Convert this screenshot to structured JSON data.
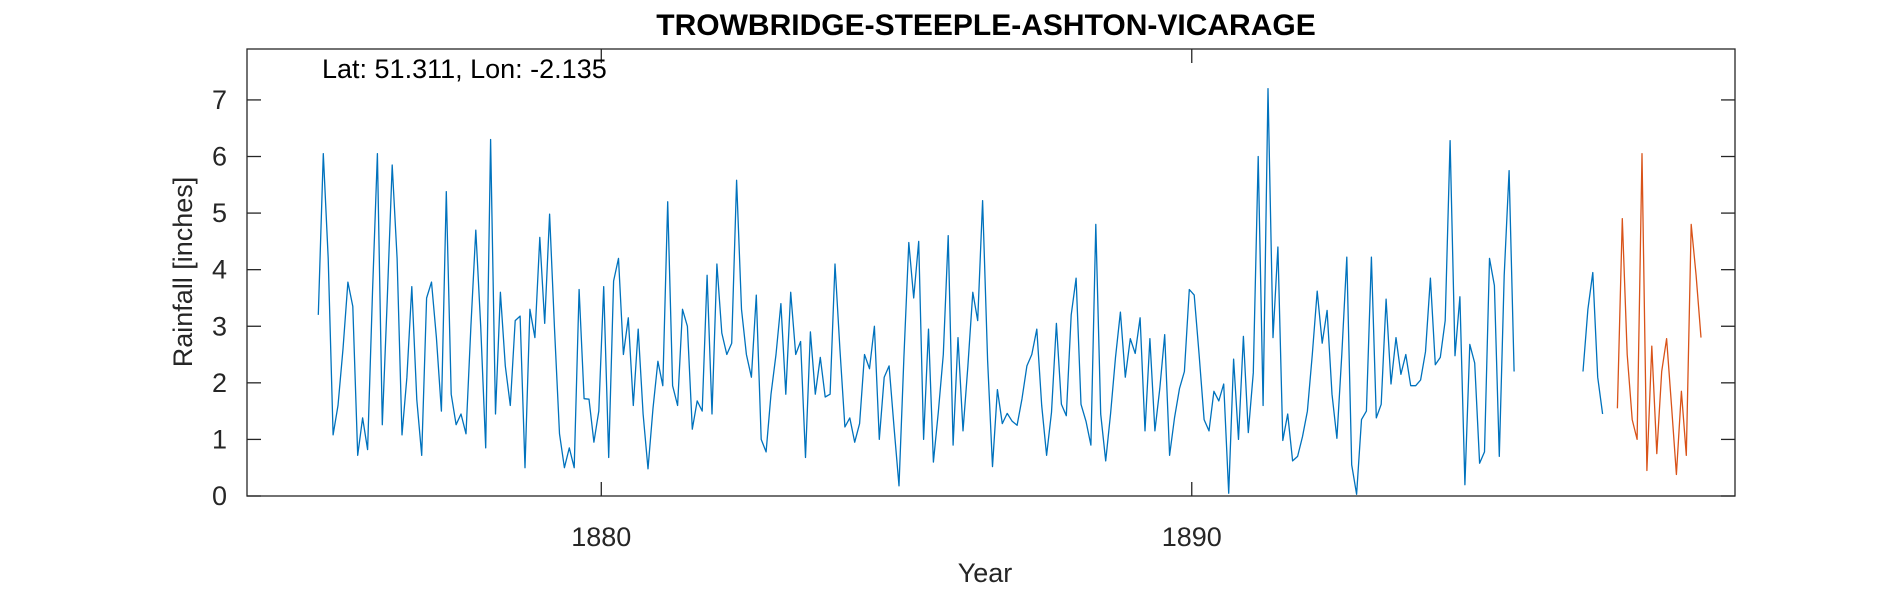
{
  "chart_data": {
    "type": "line",
    "title": "TROWBRIDGE-STEEPLE-ASHTON-VICARAGE",
    "annotation": "Lat: 51.311, Lon: -2.135",
    "xlabel": "Year",
    "ylabel": "Rainfall [inches]",
    "xlim": [
      1874,
      1899.2
    ],
    "ylim": [
      0,
      7.9
    ],
    "x_ticks": [
      1880,
      1890
    ],
    "x_tick_labels": [
      "1880",
      "1890"
    ],
    "y_ticks": [
      0,
      1,
      2,
      3,
      4,
      5,
      6,
      7
    ],
    "y_tick_labels": [
      "0",
      "1",
      "2",
      "3",
      "4",
      "5",
      "6",
      "7"
    ],
    "grid": false,
    "box": true,
    "colors": {
      "series_1": "#0072BD",
      "series_2": "#D95319",
      "axes": "#262626"
    },
    "series": [
      {
        "color": "#0072BD",
        "x_start": 1875.208333,
        "x_step": 0.0833333,
        "values": [
          3.2,
          6.05,
          4.2,
          1.08,
          1.6,
          2.6,
          3.78,
          3.35,
          0.72,
          1.38,
          0.82,
          3.6,
          6.05,
          1.26,
          3.45,
          5.85,
          4.2,
          1.08,
          2.1,
          3.7,
          1.7,
          0.72,
          3.5,
          3.78,
          2.8,
          1.5,
          5.38,
          1.8,
          1.26,
          1.45,
          1.1,
          3.0,
          4.7,
          3.0,
          0.85,
          6.3,
          1.45,
          3.6,
          2.3,
          1.6,
          3.1,
          3.18,
          0.5,
          3.3,
          2.8,
          4.57,
          3.05,
          4.98,
          2.96,
          1.1,
          0.5,
          0.85,
          0.5,
          3.65,
          1.72,
          1.71,
          0.95,
          1.5,
          3.7,
          0.68,
          3.8,
          4.2,
          2.5,
          3.15,
          1.6,
          2.95,
          1.45,
          0.48,
          1.55,
          2.38,
          1.95,
          5.2,
          1.95,
          1.6,
          3.3,
          3.0,
          1.18,
          1.68,
          1.5,
          3.9,
          1.45,
          4.1,
          2.88,
          2.5,
          2.7,
          5.58,
          3.3,
          2.5,
          2.1,
          3.55,
          1.0,
          0.78,
          1.8,
          2.5,
          3.4,
          1.8,
          3.6,
          2.5,
          2.73,
          0.68,
          2.9,
          1.8,
          2.45,
          1.75,
          1.8,
          4.1,
          2.6,
          1.22,
          1.38,
          0.95,
          1.28,
          2.5,
          2.25,
          3.0,
          1.0,
          2.1,
          2.3,
          1.2,
          0.18,
          2.45,
          4.48,
          3.5,
          4.5,
          1.0,
          2.95,
          0.6,
          1.48,
          2.5,
          4.6,
          0.9,
          2.8,
          1.15,
          2.3,
          3.6,
          3.1,
          5.22,
          2.4,
          0.52,
          1.88,
          1.28,
          1.46,
          1.32,
          1.25,
          1.72,
          2.3,
          2.5,
          2.95,
          1.6,
          0.72,
          1.48,
          3.05,
          1.62,
          1.42,
          3.2,
          3.85,
          1.62,
          1.32,
          0.9,
          4.8,
          1.45,
          0.62,
          1.46,
          2.45,
          3.25,
          2.1,
          2.78,
          2.52,
          3.15,
          1.15,
          2.78,
          1.15,
          1.9,
          2.85,
          0.72,
          1.38,
          1.9,
          2.2,
          3.65,
          3.55,
          2.5,
          1.35,
          1.15,
          1.85,
          1.68,
          1.98,
          0.05,
          2.42,
          1.0,
          2.82,
          1.12,
          2.18,
          6.0,
          1.6,
          7.2,
          2.8,
          4.4,
          0.98,
          1.45,
          0.62,
          0.7,
          1.05,
          1.5,
          2.5,
          3.62,
          2.7,
          3.28,
          1.8,
          1.02,
          2.5,
          4.22,
          0.55,
          0.03,
          1.35,
          1.5,
          4.22,
          1.38,
          1.62,
          3.48,
          1.98,
          2.8,
          2.15,
          2.5,
          1.95,
          1.95,
          2.05,
          2.55,
          3.85,
          2.32,
          2.45,
          3.1,
          6.28,
          2.48,
          3.52,
          0.2,
          2.68,
          2.35,
          0.58,
          0.78,
          4.2,
          3.72,
          0.7,
          3.9,
          5.75,
          2.2
        ]
      },
      {
        "color": "#0072BD",
        "x_start": 1896.625,
        "x_step": 0.0833333,
        "values": [
          2.2,
          3.3,
          3.95,
          2.1,
          1.45
        ]
      },
      {
        "color": "#D95319",
        "x_start": 1897.208333,
        "x_step": 0.0833333,
        "values": [
          1.55,
          4.9,
          2.5,
          1.35,
          1.0,
          6.05,
          0.45,
          2.65,
          0.75,
          2.2,
          2.78,
          1.6,
          0.38,
          1.85,
          0.72,
          4.8,
          3.9,
          2.8
        ]
      }
    ]
  }
}
